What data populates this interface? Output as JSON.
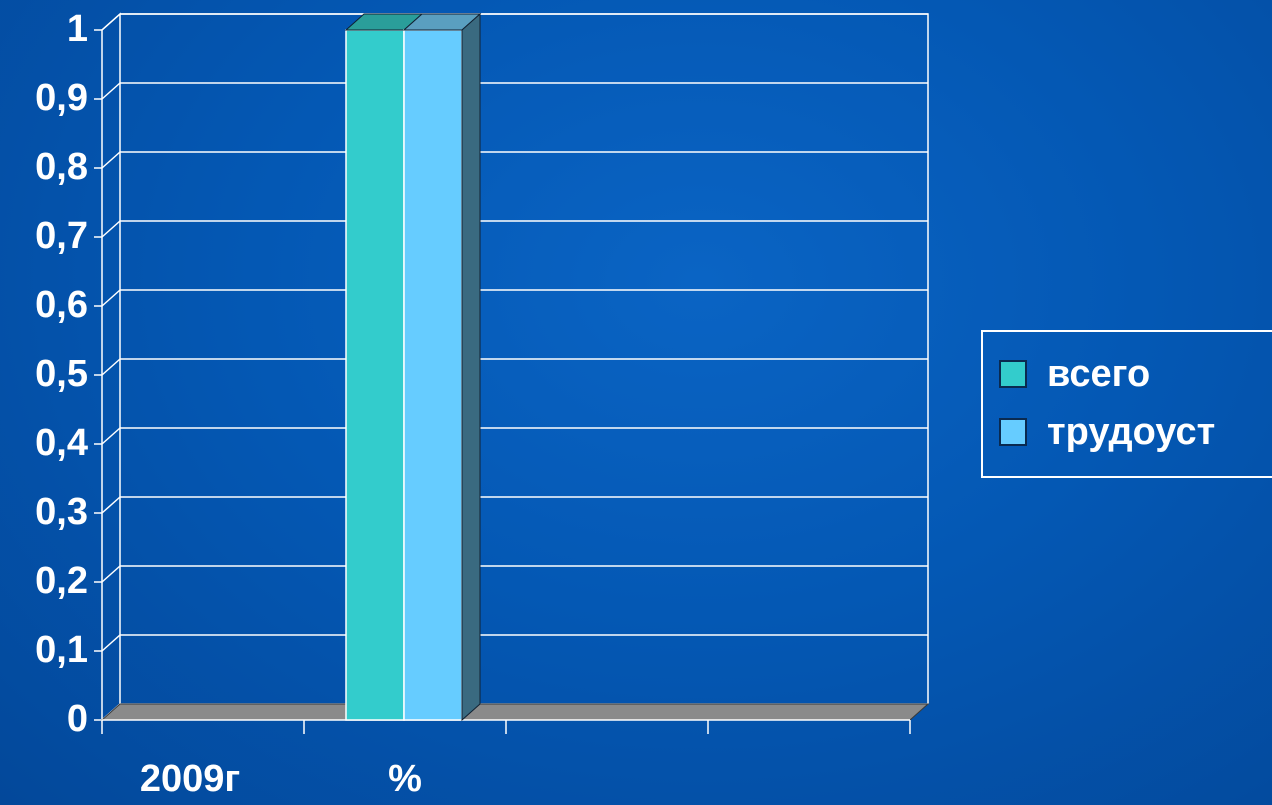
{
  "chart_data": {
    "type": "bar",
    "categories": [
      "2009г",
      "%"
    ],
    "series": [
      {
        "name": "всего",
        "values": [
          0,
          1
        ],
        "color": "#33cccc"
      },
      {
        "name": "трудоуст",
        "values": [
          0,
          1
        ],
        "color": "#66ccff"
      }
    ],
    "y_ticks": [
      "0",
      "0,1",
      "0,2",
      "0,3",
      "0,4",
      "0,5",
      "0,6",
      "0,7",
      "0,8",
      "0,9",
      "1"
    ],
    "ylim": [
      0,
      1
    ],
    "grid": true,
    "legend_position": "right",
    "style": "3d-clustered-column"
  },
  "colors": {
    "background": "#0458b4",
    "axis_text": "#ffffff",
    "gridline": "#ffffff",
    "floor": "#8a8a8a"
  }
}
